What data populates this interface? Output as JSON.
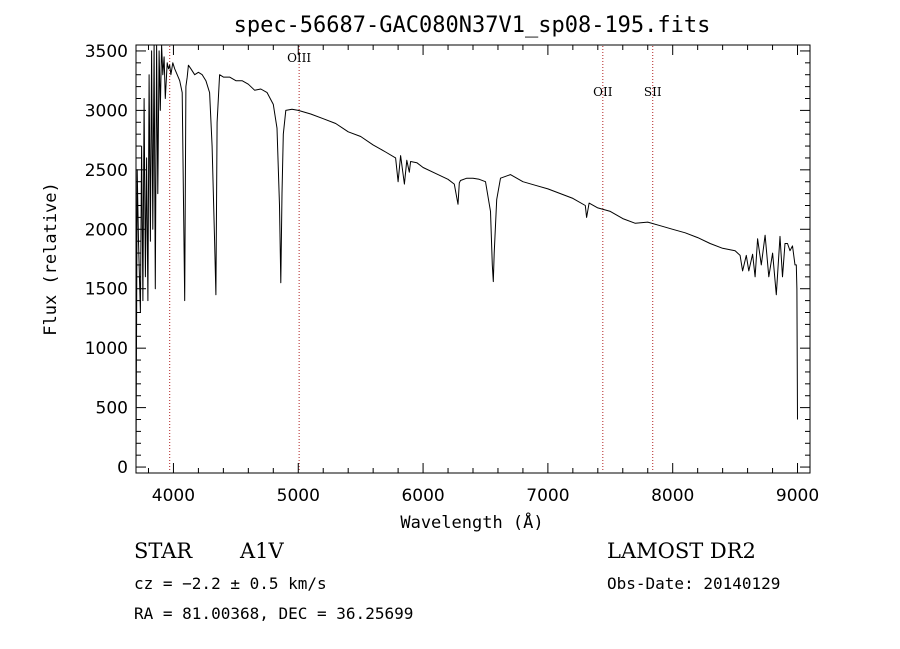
{
  "chart_data": {
    "type": "line",
    "title": "spec-56687-GAC080N37V1_sp08-195.fits",
    "xlabel": "Wavelength (Å)",
    "ylabel": "Flux (relative)",
    "xlim": [
      3700,
      9100
    ],
    "ylim": [
      -50,
      3550
    ],
    "xticks": [
      4000,
      5000,
      6000,
      7000,
      8000,
      9000
    ],
    "xtick_labels": [
      "4000",
      "5000",
      "6000",
      "7000",
      "8000",
      "9000"
    ],
    "yticks": [
      0,
      500,
      1000,
      1500,
      2000,
      2500,
      3000,
      3500
    ],
    "ytick_labels": [
      "0",
      "500",
      "1000",
      "1500",
      "2000",
      "2500",
      "3000",
      "3500"
    ],
    "line_color": "#000000",
    "marker_color": "#b22222",
    "emission_markers": [
      {
        "label": "",
        "x": 3970
      },
      {
        "label": "OIII",
        "x": 5007
      },
      {
        "label": "OII",
        "x": 7440
      },
      {
        "label": "SII",
        "x": 7840
      }
    ],
    "series": [
      {
        "x": [
          3700,
          3710,
          3720,
          3735,
          3745,
          3755,
          3765,
          3775,
          3785,
          3795,
          3805,
          3815,
          3825,
          3835,
          3845,
          3855,
          3865,
          3875,
          3885,
          3895,
          3905,
          3915,
          3925,
          3935,
          3950,
          3960,
          3970,
          3980,
          3995,
          4010,
          4030,
          4050,
          4070,
          4080,
          4090,
          4100,
          4110,
          4120,
          4140,
          4170,
          4200,
          4230,
          4260,
          4290,
          4310,
          4330,
          4340,
          4350,
          4370,
          4400,
          4450,
          4500,
          4550,
          4600,
          4650,
          4700,
          4750,
          4800,
          4830,
          4850,
          4860,
          4870,
          4880,
          4900,
          4950,
          5000,
          5100,
          5200,
          5300,
          5400,
          5500,
          5600,
          5700,
          5780,
          5800,
          5820,
          5850,
          5870,
          5890,
          5900,
          5950,
          6000,
          6100,
          6200,
          6250,
          6280,
          6290,
          6300,
          6350,
          6400,
          6450,
          6500,
          6540,
          6555,
          6563,
          6570,
          6590,
          6620,
          6700,
          6800,
          6900,
          7000,
          7100,
          7200,
          7300,
          7310,
          7330,
          7400,
          7500,
          7600,
          7700,
          7800,
          7900,
          8000,
          8100,
          8200,
          8300,
          8400,
          8500,
          8540,
          8560,
          8590,
          8610,
          8640,
          8660,
          8680,
          8710,
          8740,
          8770,
          8800,
          8830,
          8860,
          8880,
          8900,
          8920,
          8940,
          8960,
          8980,
          8990,
          8995,
          9000
        ],
        "values": [
          0,
          2500,
          1900,
          1300,
          2700,
          1400,
          3100,
          1600,
          2600,
          1400,
          3300,
          1900,
          3500,
          2000,
          3550,
          1500,
          3550,
          2300,
          3500,
          3000,
          3550,
          3300,
          3450,
          3100,
          3400,
          3350,
          3380,
          3300,
          3400,
          3350,
          3300,
          3250,
          3150,
          2300,
          1400,
          3200,
          3280,
          3380,
          3350,
          3300,
          3320,
          3300,
          3250,
          3150,
          2700,
          1900,
          1450,
          2900,
          3300,
          3280,
          3280,
          3250,
          3250,
          3220,
          3170,
          3180,
          3150,
          3050,
          2850,
          2200,
          1550,
          2300,
          2800,
          3000,
          3010,
          3000,
          2970,
          2930,
          2890,
          2820,
          2780,
          2710,
          2650,
          2600,
          2400,
          2620,
          2380,
          2580,
          2480,
          2570,
          2560,
          2520,
          2470,
          2420,
          2380,
          2210,
          2390,
          2410,
          2430,
          2430,
          2420,
          2400,
          2150,
          1700,
          1560,
          1800,
          2250,
          2430,
          2460,
          2400,
          2370,
          2340,
          2300,
          2260,
          2200,
          2100,
          2220,
          2180,
          2150,
          2090,
          2050,
          2060,
          2030,
          2000,
          1970,
          1930,
          1880,
          1840,
          1820,
          1780,
          1650,
          1780,
          1650,
          1790,
          1600,
          1920,
          1700,
          1950,
          1600,
          1800,
          1450,
          1940,
          1600,
          1880,
          1880,
          1820,
          1860,
          1700,
          1700,
          1500,
          400
        ]
      }
    ]
  },
  "footer": {
    "object_class": "STAR",
    "subclass": "A1V",
    "cz": "cz = −2.2 ± 0.5 km/s",
    "coords": "RA =  81.00368, DEC =  36.25699",
    "survey": "LAMOST DR2",
    "obs_date": "Obs-Date: 20140129"
  }
}
